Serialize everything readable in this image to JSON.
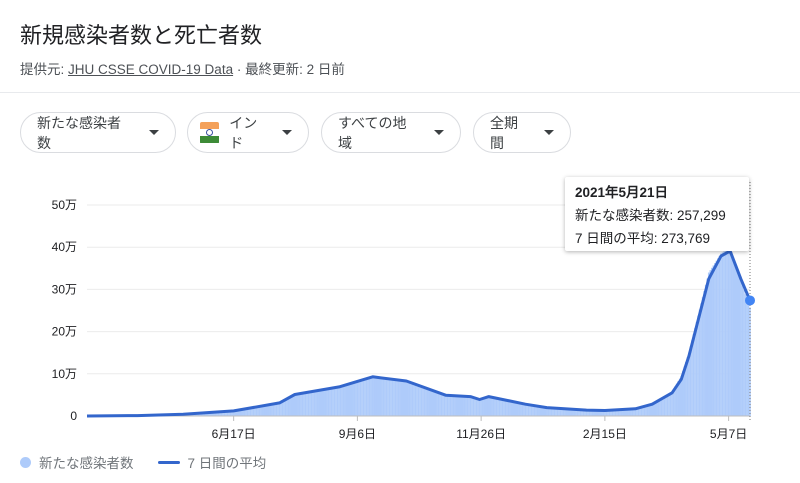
{
  "header": {
    "title": "新規感染者数と死亡者数",
    "source_prefix": "提供元:",
    "source_link": "JHU CSSE COVID-19 Data",
    "separator": "·",
    "updated": "最終更新: 2 日前"
  },
  "filters": [
    {
      "label": "新たな感染者数"
    },
    {
      "label": "インド",
      "icon": "india-flag-icon"
    },
    {
      "label": "すべての地域"
    },
    {
      "label": "全期間"
    }
  ],
  "tooltip": {
    "date": "2021年5月21日",
    "cases_line": "新たな感染者数: 257,299",
    "avg_line": "7 日間の平均: 273,769"
  },
  "colors": {
    "bars": "#aecbfa",
    "line": "#3366cc",
    "dot": "#4285f4",
    "grid": "#ebebeb"
  },
  "chart_data": {
    "type": "bar+line",
    "ylim": [
      0,
      500000
    ],
    "yticks": [
      {
        "v": 0,
        "label": "0"
      },
      {
        "v": 100000,
        "label": "10万"
      },
      {
        "v": 200000,
        "label": "20万"
      },
      {
        "v": 300000,
        "label": "30万"
      },
      {
        "v": 400000,
        "label": "40万"
      },
      {
        "v": 500000,
        "label": "50万"
      }
    ],
    "xticks": [
      {
        "date": "2020-06-17",
        "label": "6月17日"
      },
      {
        "date": "2020-09-06",
        "label": "9月6日"
      },
      {
        "date": "2020-11-26",
        "label": "11月26日"
      },
      {
        "date": "2021-02-15",
        "label": "2月15日"
      },
      {
        "date": "2021-05-07",
        "label": "5月7日"
      }
    ],
    "xlim": [
      "2020-03-13",
      "2021-05-21"
    ],
    "grid": true,
    "legend_position": "bottom-left",
    "series": [
      {
        "name": "新たな感染者数",
        "type": "bar",
        "points": [
          [
            "2020-03-13",
            0
          ],
          [
            "2020-04-15",
            1000
          ],
          [
            "2020-05-15",
            4000
          ],
          [
            "2020-06-17",
            12000
          ],
          [
            "2020-07-17",
            31000
          ],
          [
            "2020-07-27",
            50000
          ],
          [
            "2020-08-25",
            70000
          ],
          [
            "2020-09-16",
            95000
          ],
          [
            "2020-10-08",
            80000
          ],
          [
            "2020-11-03",
            47000
          ],
          [
            "2020-11-19",
            45000
          ],
          [
            "2020-11-25",
            40000
          ],
          [
            "2020-12-01",
            45000
          ],
          [
            "2020-12-25",
            27000
          ],
          [
            "2021-01-08",
            19000
          ],
          [
            "2021-02-03",
            13000
          ],
          [
            "2021-02-15",
            13000
          ],
          [
            "2021-03-07",
            18000
          ],
          [
            "2021-03-18",
            30000
          ],
          [
            "2021-03-31",
            58000
          ],
          [
            "2021-04-06",
            95000
          ],
          [
            "2021-04-11",
            150000
          ],
          [
            "2021-04-24",
            340000
          ],
          [
            "2021-05-02",
            385000
          ],
          [
            "2021-05-08",
            400000
          ],
          [
            "2021-05-15",
            320000
          ],
          [
            "2021-05-21",
            257299
          ]
        ]
      },
      {
        "name": "7 日間の平均",
        "type": "line",
        "points": [
          [
            "2020-03-13",
            0
          ],
          [
            "2020-04-15",
            1000
          ],
          [
            "2020-05-15",
            4000
          ],
          [
            "2020-06-17",
            12000
          ],
          [
            "2020-07-17",
            31000
          ],
          [
            "2020-07-27",
            51000
          ],
          [
            "2020-08-25",
            69000
          ],
          [
            "2020-09-16",
            93000
          ],
          [
            "2020-10-08",
            83000
          ],
          [
            "2020-11-03",
            49000
          ],
          [
            "2020-11-19",
            46000
          ],
          [
            "2020-11-25",
            39000
          ],
          [
            "2020-12-01",
            46000
          ],
          [
            "2020-12-25",
            28000
          ],
          [
            "2021-01-08",
            20000
          ],
          [
            "2021-02-03",
            14000
          ],
          [
            "2021-02-15",
            13000
          ],
          [
            "2021-03-07",
            17000
          ],
          [
            "2021-03-18",
            28000
          ],
          [
            "2021-03-31",
            55000
          ],
          [
            "2021-04-06",
            87000
          ],
          [
            "2021-04-11",
            142000
          ],
          [
            "2021-04-24",
            325000
          ],
          [
            "2021-05-02",
            379000
          ],
          [
            "2021-05-08",
            391000
          ],
          [
            "2021-05-15",
            325000
          ],
          [
            "2021-05-21",
            273769
          ]
        ]
      }
    ]
  }
}
